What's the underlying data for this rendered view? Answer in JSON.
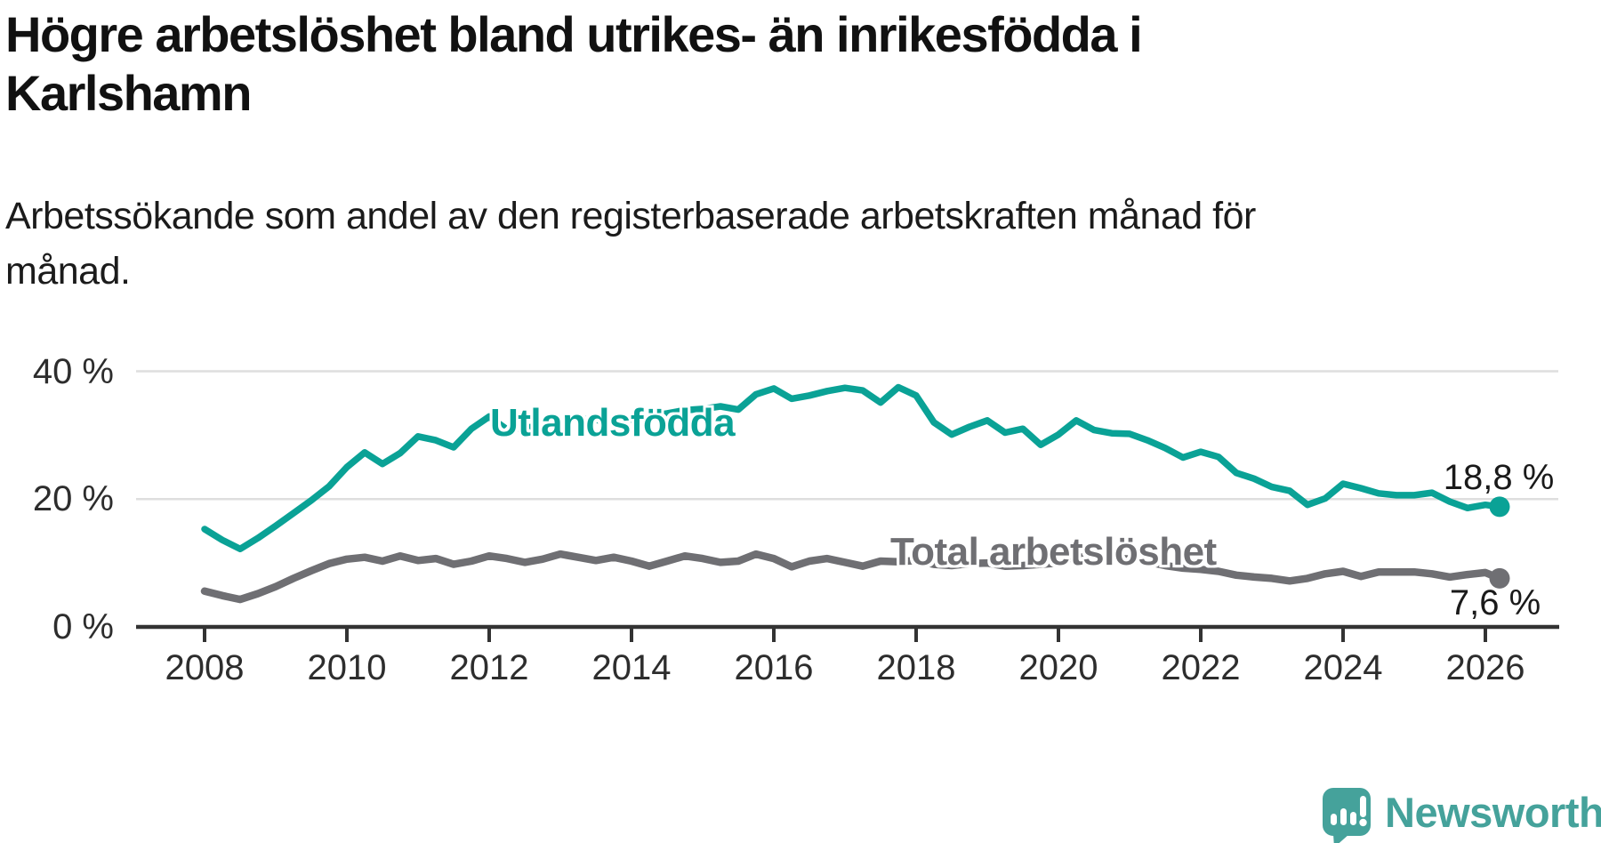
{
  "title_lines": [
    "Högre arbetslöshet bland utrikes- än inrikesfödda i",
    "Karlshamn"
  ],
  "subtitle_lines": [
    "Arbetssökande som andel av den registerbaserade arbetskraften månad för",
    "månad."
  ],
  "footer": {
    "brand": "Newsworthy"
  },
  "colors": {
    "utlandsfodda": "#0aa296",
    "total": "#6f6f73",
    "grid": "#dedede",
    "axis": "#333333",
    "logo_teal": "#45a29b"
  },
  "chart_data": {
    "type": "line",
    "title": "Högre arbetslöshet bland utrikes- än inrikesfödda i Karlshamn",
    "subtitle": "Arbetssökande som andel av den registerbaserade arbetskraften månad för månad.",
    "xlabel": "",
    "ylabel": "",
    "grid": "horizontal",
    "legend_position": "inline-labels",
    "xlim": [
      2007.05,
      2027.05
    ],
    "ylim": [
      0,
      44
    ],
    "y_ticks": [
      0,
      20,
      40
    ],
    "y_tick_labels": [
      "0 %",
      "20 %",
      "40 %"
    ],
    "x_ticks": [
      2008,
      2010,
      2012,
      2014,
      2016,
      2018,
      2020,
      2022,
      2024,
      2026
    ],
    "x_tick_labels": [
      "2008",
      "2010",
      "2012",
      "2014",
      "2016",
      "2018",
      "2020",
      "2022",
      "2024",
      "2026"
    ],
    "x": [
      2008.0,
      2008.25,
      2008.5,
      2008.75,
      2009.0,
      2009.25,
      2009.5,
      2009.75,
      2010.0,
      2010.25,
      2010.5,
      2010.75,
      2011.0,
      2011.25,
      2011.5,
      2011.75,
      2012.0,
      2012.25,
      2012.5,
      2012.75,
      2013.0,
      2013.25,
      2013.5,
      2013.75,
      2014.0,
      2014.25,
      2014.5,
      2014.75,
      2015.0,
      2015.25,
      2015.5,
      2015.75,
      2016.0,
      2016.25,
      2016.5,
      2016.75,
      2017.0,
      2017.25,
      2017.5,
      2017.75,
      2018.0,
      2018.25,
      2018.5,
      2018.75,
      2019.0,
      2019.25,
      2019.5,
      2019.75,
      2020.0,
      2020.25,
      2020.5,
      2020.75,
      2021.0,
      2021.25,
      2021.5,
      2021.75,
      2022.0,
      2022.25,
      2022.5,
      2022.75,
      2023.0,
      2023.25,
      2023.5,
      2023.75,
      2024.0,
      2024.25,
      2024.5,
      2024.75,
      2025.0,
      2025.25,
      2025.5,
      2025.75,
      2026.0,
      2026.2
    ],
    "series": [
      {
        "name": "Utlandsfödda",
        "color": "#0aa296",
        "end_label": "18,8 %",
        "end_value": 18.8,
        "values": [
          15.3,
          13.6,
          12.2,
          13.9,
          15.8,
          17.8,
          19.8,
          22.0,
          25.0,
          27.3,
          25.5,
          27.2,
          29.8,
          29.2,
          28.1,
          31.0,
          32.9,
          30.9,
          31.1,
          31.6,
          32.1,
          32.6,
          32.4,
          31.9,
          32.4,
          33.0,
          33.4,
          33.9,
          34.1,
          34.5,
          34.0,
          36.4,
          37.3,
          35.7,
          36.2,
          36.9,
          37.4,
          37.0,
          35.1,
          37.5,
          36.2,
          32.0,
          30.1,
          31.3,
          32.3,
          30.4,
          31.0,
          28.5,
          30.1,
          32.3,
          30.8,
          30.3,
          30.2,
          29.2,
          28.0,
          26.5,
          27.4,
          26.6,
          24.1,
          23.2,
          21.9,
          21.3,
          19.1,
          20.1,
          22.4,
          21.7,
          20.9,
          20.6,
          20.6,
          21.0,
          19.6,
          18.6,
          19.1,
          18.8
        ]
      },
      {
        "name": "Total arbetslöshet",
        "color": "#6f6f73",
        "end_label": "7,6 %",
        "end_value": 7.6,
        "values": [
          5.6,
          4.9,
          4.3,
          5.2,
          6.3,
          7.6,
          8.8,
          9.9,
          10.6,
          10.9,
          10.3,
          11.1,
          10.4,
          10.7,
          9.8,
          10.3,
          11.1,
          10.7,
          10.1,
          10.6,
          11.4,
          10.9,
          10.4,
          10.9,
          10.3,
          9.5,
          10.3,
          11.1,
          10.7,
          10.1,
          10.3,
          11.4,
          10.7,
          9.4,
          10.3,
          10.7,
          10.1,
          9.5,
          10.3,
          10.2,
          10.4,
          9.8,
          9.6,
          9.9,
          10.0,
          9.5,
          9.6,
          9.8,
          10.0,
          10.8,
          11.2,
          10.8,
          10.6,
          10.2,
          9.6,
          9.2,
          9.0,
          8.7,
          8.1,
          7.8,
          7.6,
          7.2,
          7.6,
          8.3,
          8.7,
          7.9,
          8.6,
          8.6,
          8.6,
          8.3,
          7.8,
          8.2,
          8.5,
          7.6
        ]
      }
    ]
  }
}
